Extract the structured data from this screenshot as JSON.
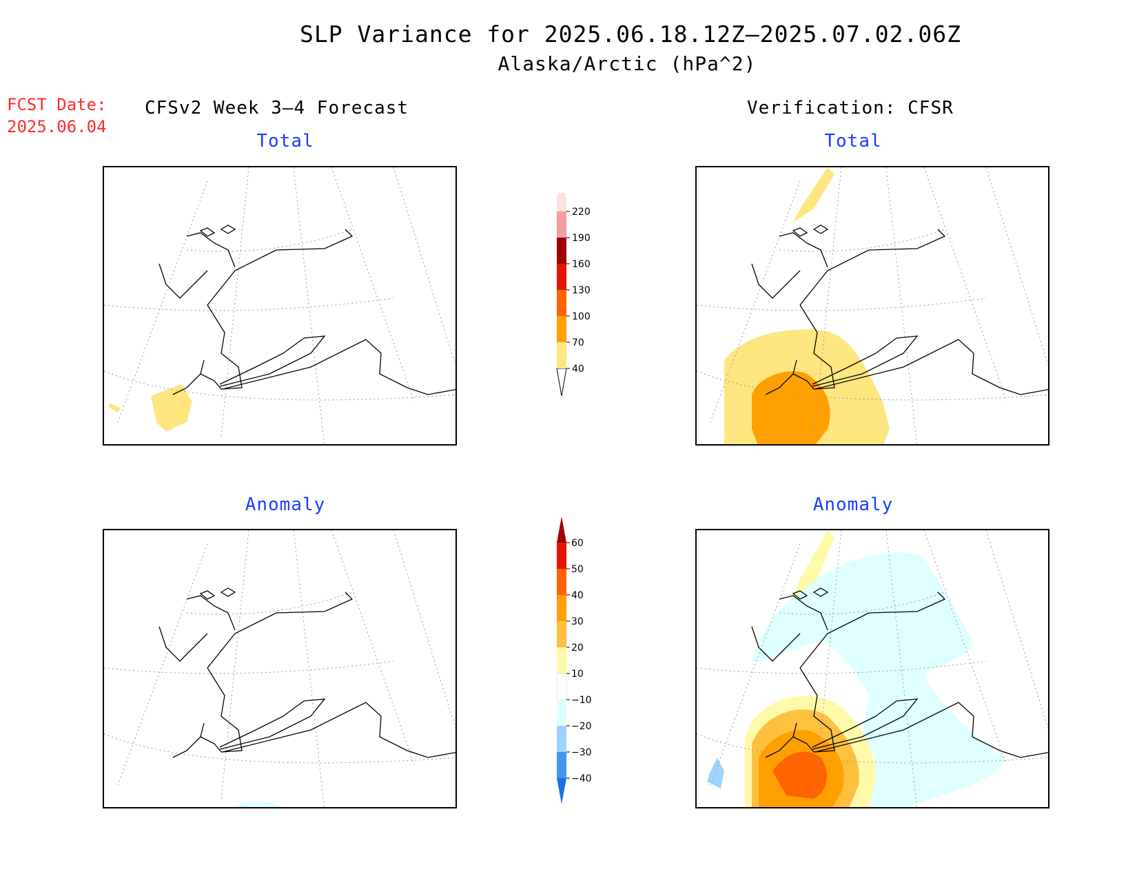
{
  "title": {
    "line1": "SLP Variance for 2025.06.18.12Z–2025.07.02.06Z",
    "line2": "Alaska/Arctic (hPa^2)"
  },
  "forecast_date": {
    "label": "FCST Date:",
    "value": "2025.06.04"
  },
  "columns": {
    "left_header": "CFSv2 Week 3–4 Forecast",
    "right_header": "Verification: CFSR"
  },
  "panels": {
    "forecast_total_title": "Total",
    "forecast_anomaly_title": "Anomaly",
    "verification_total_title": "Total",
    "verification_anomaly_title": "Anomaly"
  },
  "colorbars": {
    "total": {
      "levels": [
        "40",
        "70",
        "100",
        "130",
        "160",
        "190",
        "220"
      ],
      "colors": [
        "#ffe680",
        "#ffa000",
        "#ff6400",
        "#e61400",
        "#a00000",
        "#f0a0a0",
        "#ffe0e0"
      ]
    },
    "anomaly": {
      "levels": [
        "60",
        "50",
        "40",
        "30",
        "20",
        "10",
        "−10",
        "−20",
        "−30",
        "−40"
      ],
      "colors_top_to_bottom": [
        "#a00000",
        "#e61400",
        "#ff6400",
        "#ffa000",
        "#ffc040",
        "#fffaaa",
        "#ffffff",
        "#e0ffff",
        "#a0d2ff",
        "#4696f0",
        "#1e6ee6"
      ]
    }
  }
}
